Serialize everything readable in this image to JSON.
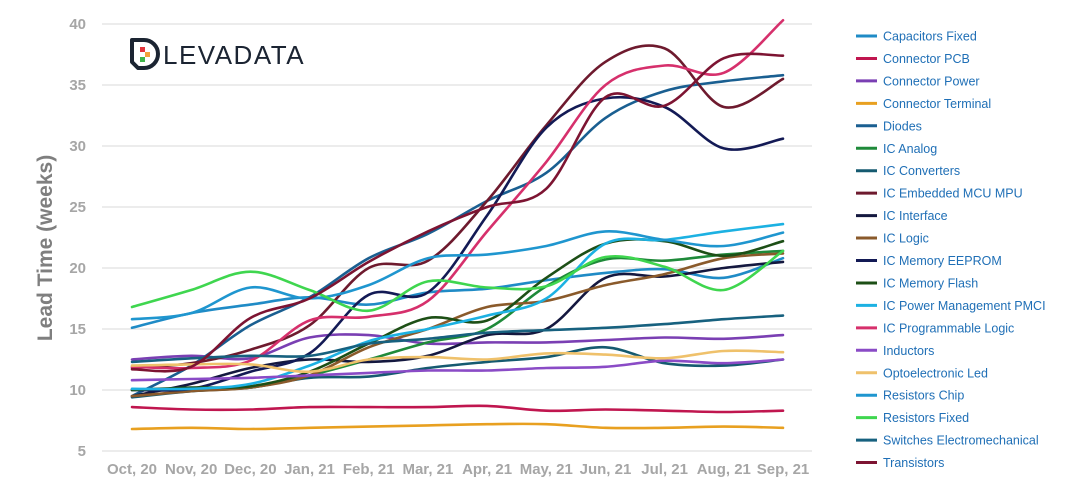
{
  "brand": {
    "name": "LEVADATA"
  },
  "chart_data": {
    "type": "line",
    "ylabel": "Lead Time (weeks)",
    "xlabel": "",
    "ylim": [
      5,
      40
    ],
    "yticks": [
      5,
      10,
      15,
      20,
      25,
      30,
      35,
      40
    ],
    "grid": true,
    "legend_position": "right",
    "categories": [
      "Oct, 20",
      "Nov, 20",
      "Dec, 20",
      "Jan, 21",
      "Feb, 21",
      "Mar, 21",
      "Apr, 21",
      "May, 21",
      "Jun, 21",
      "Jul, 21",
      "Aug, 21",
      "Sep, 21"
    ],
    "series": [
      {
        "name": "Capacitors Fixed",
        "color": "#1f8bc6",
        "values": [
          15.1,
          16.3,
          17.0,
          17.6,
          17.0,
          18.0,
          18.3,
          19.0,
          19.6,
          19.9,
          19.2,
          20.8
        ]
      },
      {
        "name": "Connector PCB",
        "color": "#c0164f",
        "values": [
          8.6,
          8.4,
          8.4,
          8.6,
          8.6,
          8.6,
          8.7,
          8.3,
          8.4,
          8.3,
          8.2,
          8.3
        ]
      },
      {
        "name": "Connector Power",
        "color": "#7a3fb3",
        "values": [
          12.5,
          12.8,
          12.6,
          14.3,
          14.5,
          13.8,
          13.9,
          13.9,
          14.1,
          14.3,
          14.2,
          14.5
        ]
      },
      {
        "name": "Connector Terminal",
        "color": "#e8a020",
        "values": [
          6.8,
          6.9,
          6.8,
          6.9,
          7.0,
          7.1,
          7.2,
          7.2,
          6.9,
          6.9,
          7.0,
          6.9
        ]
      },
      {
        "name": "Diodes",
        "color": "#1a5f91",
        "values": [
          9.5,
          12.0,
          15.3,
          17.6,
          20.8,
          22.8,
          25.5,
          27.8,
          32.3,
          34.5,
          35.3,
          35.8
        ]
      },
      {
        "name": "IC Analog",
        "color": "#1f8a3a",
        "values": [
          10.0,
          10.1,
          10.2,
          11.2,
          12.5,
          13.9,
          15.0,
          18.5,
          20.7,
          20.6,
          21.1,
          21.4
        ]
      },
      {
        "name": "IC Converters",
        "color": "#155a70",
        "values": [
          9.4,
          9.9,
          10.2,
          11.0,
          11.1,
          11.8,
          12.3,
          12.7,
          13.5,
          12.2,
          12.0,
          12.5
        ]
      },
      {
        "name": "IC Embedded MCU MPU",
        "color": "#6e1a2e",
        "values": [
          11.8,
          12.2,
          13.3,
          15.3,
          20.0,
          20.6,
          25.5,
          31.7,
          36.9,
          38.0,
          33.2,
          35.5
        ]
      },
      {
        "name": "IC Interface",
        "color": "#14183f",
        "values": [
          9.5,
          10.5,
          11.8,
          12.5,
          12.3,
          12.8,
          14.5,
          15.0,
          19.2,
          19.3,
          20.0,
          20.5
        ]
      },
      {
        "name": "IC Logic",
        "color": "#8a5a2b",
        "values": [
          9.5,
          9.9,
          10.2,
          11.2,
          13.5,
          15.0,
          16.8,
          17.3,
          18.6,
          19.5,
          20.8,
          21.2
        ]
      },
      {
        "name": "IC Memory EEPROM",
        "color": "#131a55",
        "values": [
          10.0,
          10.1,
          11.5,
          13.0,
          17.8,
          18.0,
          24.3,
          31.5,
          33.9,
          33.2,
          29.8,
          30.6
        ]
      },
      {
        "name": "IC Memory Flash",
        "color": "#1d4f16",
        "values": [
          10.0,
          10.2,
          10.3,
          11.5,
          13.8,
          15.9,
          15.7,
          19.2,
          22.0,
          22.2,
          21.0,
          22.2
        ]
      },
      {
        "name": "IC Power Management PMCI",
        "color": "#1cb1e2",
        "values": [
          10.1,
          10.1,
          10.5,
          12.0,
          14.0,
          15.0,
          16.1,
          17.5,
          22.0,
          22.3,
          23.0,
          23.6
        ]
      },
      {
        "name": "IC Programmable Logic",
        "color": "#d6306c",
        "values": [
          11.9,
          11.8,
          12.4,
          15.7,
          16.0,
          17.3,
          23.0,
          28.7,
          35.0,
          36.6,
          36.0,
          40.3
        ]
      },
      {
        "name": "Inductors",
        "color": "#8a4bc6",
        "values": [
          10.8,
          10.9,
          11.0,
          11.2,
          11.4,
          11.6,
          11.6,
          11.8,
          11.9,
          12.4,
          12.2,
          12.5
        ]
      },
      {
        "name": "Optoelectronic Led",
        "color": "#efc16b",
        "values": [
          12.0,
          12.1,
          12.1,
          11.5,
          12.5,
          12.7,
          12.5,
          13.0,
          12.9,
          12.6,
          13.2,
          13.1
        ]
      },
      {
        "name": "Resistors Chip",
        "color": "#1f96cf",
        "values": [
          15.8,
          16.3,
          18.4,
          17.5,
          18.6,
          20.8,
          21.1,
          21.8,
          23.0,
          22.3,
          21.8,
          22.9
        ]
      },
      {
        "name": "Resistors Fixed",
        "color": "#3fd64f",
        "values": [
          16.8,
          18.2,
          19.7,
          18.2,
          16.5,
          18.9,
          18.4,
          18.5,
          20.9,
          20.1,
          18.2,
          21.4
        ]
      },
      {
        "name": "Switches Electromechanical",
        "color": "#17617f",
        "values": [
          12.3,
          12.6,
          12.8,
          12.8,
          13.8,
          14.2,
          14.7,
          14.9,
          15.1,
          15.4,
          15.8,
          16.1
        ]
      },
      {
        "name": "Transistors",
        "color": "#7d1432",
        "values": [
          11.7,
          11.9,
          15.9,
          17.5,
          20.5,
          23.0,
          25.0,
          26.5,
          34.0,
          33.3,
          37.2,
          37.4
        ]
      }
    ]
  }
}
